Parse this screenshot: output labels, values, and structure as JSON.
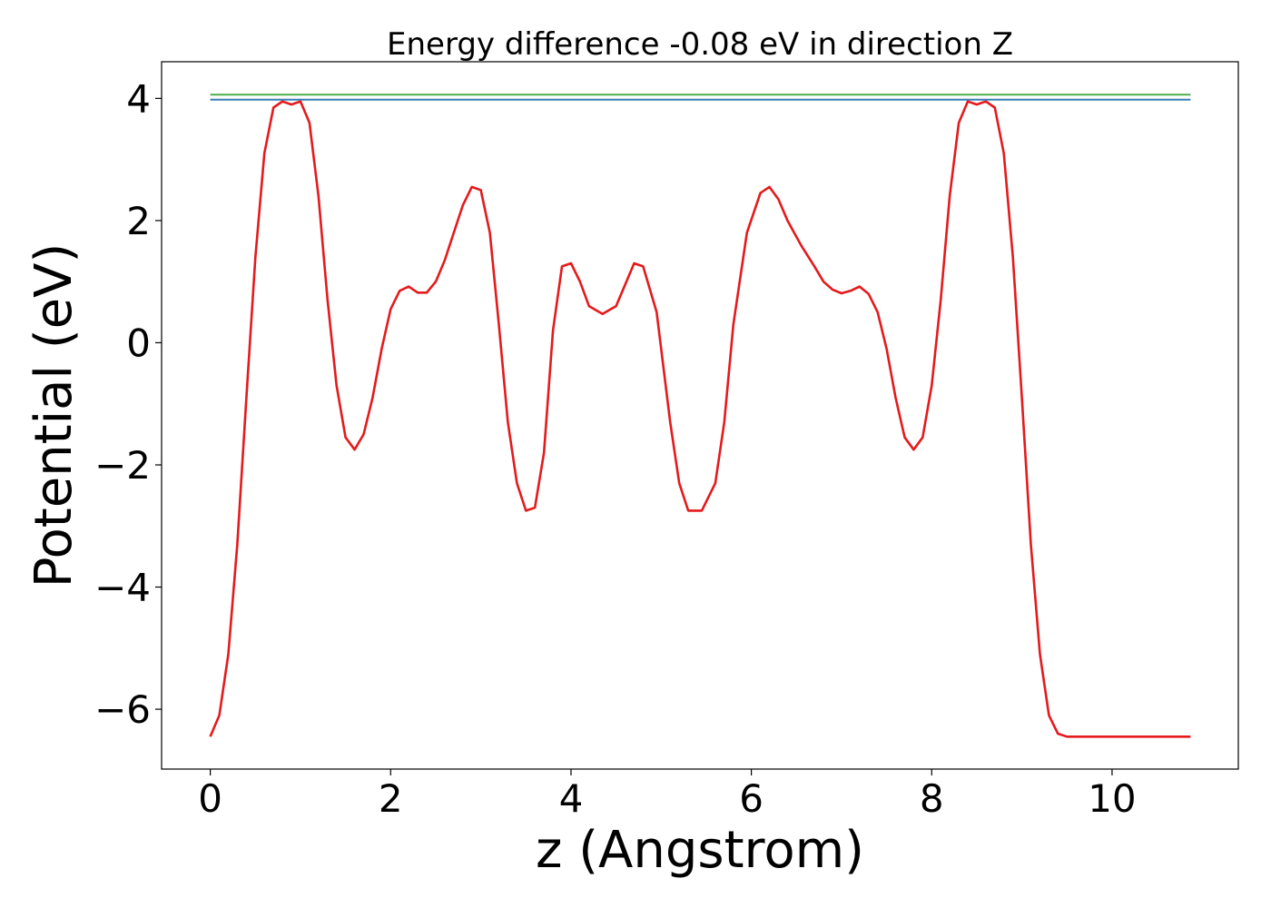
{
  "chart_data": {
    "type": "line",
    "title": "Energy difference -0.08 eV in direction Z",
    "xlabel": "z (Angstrom)",
    "ylabel": "Potential (eV)",
    "xlim": [
      -0.54,
      11.4
    ],
    "ylim": [
      -6.98,
      4.6
    ],
    "xticks": [
      0,
      2,
      4,
      6,
      8,
      10
    ],
    "xtick_labels": [
      "0",
      "2",
      "4",
      "6",
      "8",
      "10"
    ],
    "yticks": [
      -6,
      -4,
      -2,
      0,
      2,
      4
    ],
    "ytick_labels": [
      "−6",
      "−4",
      "−2",
      "0",
      "2",
      "4"
    ],
    "grid": false,
    "series": [
      {
        "color": "#e41a1c",
        "x": [
          0.0,
          0.1,
          0.2,
          0.3,
          0.4,
          0.5,
          0.6,
          0.7,
          0.8,
          0.9,
          1.0,
          1.1,
          1.2,
          1.3,
          1.4,
          1.5,
          1.6,
          1.7,
          1.8,
          1.9,
          2.0,
          2.1,
          2.2,
          2.3,
          2.4,
          2.5,
          2.6,
          2.7,
          2.8,
          2.9,
          3.0,
          3.1,
          3.2,
          3.3,
          3.4,
          3.5,
          3.6,
          3.7,
          3.8,
          3.9,
          4.0,
          4.1,
          4.2,
          4.35,
          4.5,
          4.6,
          4.7,
          4.8,
          4.95,
          5.1,
          5.2,
          5.3,
          5.45,
          5.6,
          5.7,
          5.8,
          5.95,
          6.1,
          6.2,
          6.3,
          6.4,
          6.55,
          6.7,
          6.8,
          6.9,
          7.0,
          7.1,
          7.2,
          7.3,
          7.4,
          7.5,
          7.6,
          7.7,
          7.8,
          7.9,
          8.0,
          8.1,
          8.2,
          8.3,
          8.4,
          8.5,
          8.6,
          8.7,
          8.8,
          8.9,
          9.0,
          9.1,
          9.2,
          9.3,
          9.4,
          9.5,
          9.6,
          9.7,
          9.8,
          9.9,
          10.0,
          10.1,
          10.2,
          10.3,
          10.4,
          10.5,
          10.6,
          10.7,
          10.8,
          10.87
        ],
        "y": [
          -6.45,
          -6.1,
          -5.1,
          -3.3,
          -0.9,
          1.4,
          3.1,
          3.85,
          3.95,
          3.9,
          3.95,
          3.6,
          2.4,
          0.7,
          -0.7,
          -1.55,
          -1.75,
          -1.5,
          -0.9,
          -0.1,
          0.55,
          0.85,
          0.92,
          0.82,
          0.82,
          1.0,
          1.35,
          1.8,
          2.25,
          2.55,
          2.5,
          1.8,
          0.3,
          -1.3,
          -2.3,
          -2.75,
          -2.7,
          -1.8,
          0.2,
          1.25,
          1.3,
          1.0,
          0.6,
          0.47,
          0.6,
          0.95,
          1.3,
          1.25,
          0.5,
          -1.3,
          -2.3,
          -2.75,
          -2.75,
          -2.3,
          -1.3,
          0.3,
          1.8,
          2.45,
          2.55,
          2.35,
          2.0,
          1.6,
          1.25,
          1.0,
          0.87,
          0.81,
          0.85,
          0.92,
          0.8,
          0.5,
          -0.1,
          -0.9,
          -1.55,
          -1.75,
          -1.55,
          -0.7,
          0.7,
          2.4,
          3.6,
          3.95,
          3.9,
          3.95,
          3.85,
          3.1,
          1.4,
          -0.9,
          -3.3,
          -5.1,
          -6.1,
          -6.4,
          -6.45,
          -6.45,
          -6.45,
          -6.45,
          -6.45,
          -6.45,
          -6.45,
          -6.45,
          -6.45,
          -6.45,
          -6.45,
          -6.45,
          -6.45,
          -6.45,
          -6.45
        ]
      },
      {
        "color": "#4daf4a",
        "x": [
          0.0,
          10.87
        ],
        "y": [
          4.06,
          4.06
        ]
      },
      {
        "color": "#377eb8",
        "x": [
          0.0,
          10.87
        ],
        "y": [
          3.98,
          3.98
        ]
      }
    ]
  }
}
